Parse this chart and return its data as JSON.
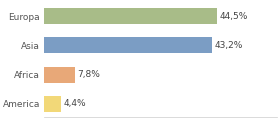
{
  "categories": [
    "America",
    "Africa",
    "Asia",
    "Europa"
  ],
  "values": [
    4.4,
    7.8,
    43.2,
    44.5
  ],
  "labels": [
    "4,4%",
    "7,8%",
    "43,2%",
    "44,5%"
  ],
  "bar_colors": [
    "#f2d878",
    "#e8a878",
    "#7b9dc4",
    "#a8bc88"
  ],
  "xlim": [
    0,
    60
  ],
  "background_color": "#ffffff",
  "bar_background": "#f5f5f0",
  "label_fontsize": 6.5,
  "category_fontsize": 6.5,
  "bar_height": 0.55
}
